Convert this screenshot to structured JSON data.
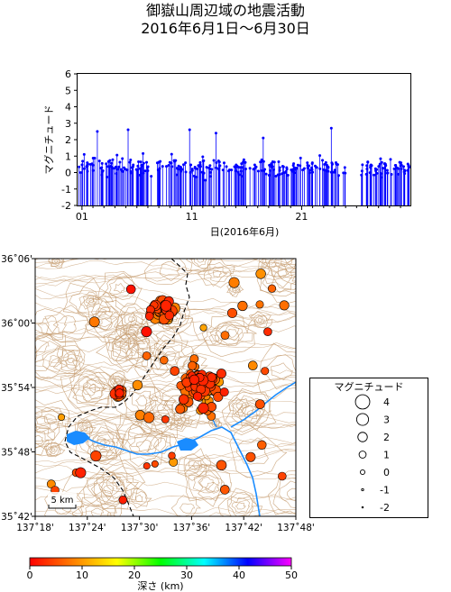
{
  "title_line1": "御嶽山周辺域の地震活動",
  "title_line2": "2016年6月1日～6月30日",
  "chart_data": [
    {
      "type": "bar",
      "subtype": "stem-time-series",
      "ylabel": "マグニチュード",
      "xlabel": "日(2016年6月)",
      "ylim": [
        -2,
        6
      ],
      "yticks": [
        "-2",
        "-1",
        "0",
        "1",
        "2",
        "3",
        "4",
        "5",
        "6"
      ],
      "xlim_days": [
        0.6,
        30.9
      ],
      "xticks": [
        {
          "day": 1,
          "label": "01"
        },
        {
          "day": 11,
          "label": "11"
        },
        {
          "day": 21,
          "label": "21"
        }
      ],
      "color": "#0000ff",
      "gap_days": [
        25.0,
        26.4
      ],
      "notable_events": [
        {
          "day": 1.2,
          "mag": 1.1
        },
        {
          "day": 2.4,
          "mag": 2.5
        },
        {
          "day": 5.2,
          "mag": 2.6
        },
        {
          "day": 10.8,
          "mag": 2.6
        },
        {
          "day": 13.2,
          "mag": 2.4
        },
        {
          "day": 17.5,
          "mag": 2.1
        },
        {
          "day": 23.7,
          "mag": 2.7
        }
      ]
    },
    {
      "type": "scatter",
      "subtype": "epicenter-map",
      "xlim_deg": [
        137.3,
        137.8
      ],
      "ylim_deg": [
        35.7,
        36.1
      ],
      "xticks": [
        "137˚18'",
        "137˚24'",
        "137˚30'",
        "137˚36'",
        "137˚42'",
        "137˚48'"
      ],
      "yticks": [
        "36˚06'",
        "36˚00'",
        "35˚54'",
        "35˚48'",
        "35˚42'"
      ],
      "scale_bar": "5 km",
      "clusters": [
        {
          "name": "northern",
          "lon": 137.545,
          "lat": 36.022,
          "spread": 0.02,
          "count": 45
        },
        {
          "name": "central-east",
          "lon": 137.617,
          "lat": 35.9,
          "spread": 0.035,
          "count": 90
        },
        {
          "name": "west",
          "lon": 137.46,
          "lat": 35.891,
          "spread": 0.008,
          "count": 18
        }
      ],
      "legend": {
        "title": "マグニチュード",
        "entries": [
          "4",
          "3",
          "2",
          "1",
          "0",
          "-1",
          "-2"
        ]
      }
    },
    {
      "type": "colorbar",
      "label": "深さ (km)",
      "ticks": [
        "0",
        "10",
        "20",
        "30",
        "40",
        "50"
      ],
      "range": [
        0,
        50
      ],
      "colors": [
        "#ff0000",
        "#ff8000",
        "#ffff00",
        "#00ff00",
        "#00ffff",
        "#0000ff",
        "#ff00ff"
      ]
    }
  ]
}
